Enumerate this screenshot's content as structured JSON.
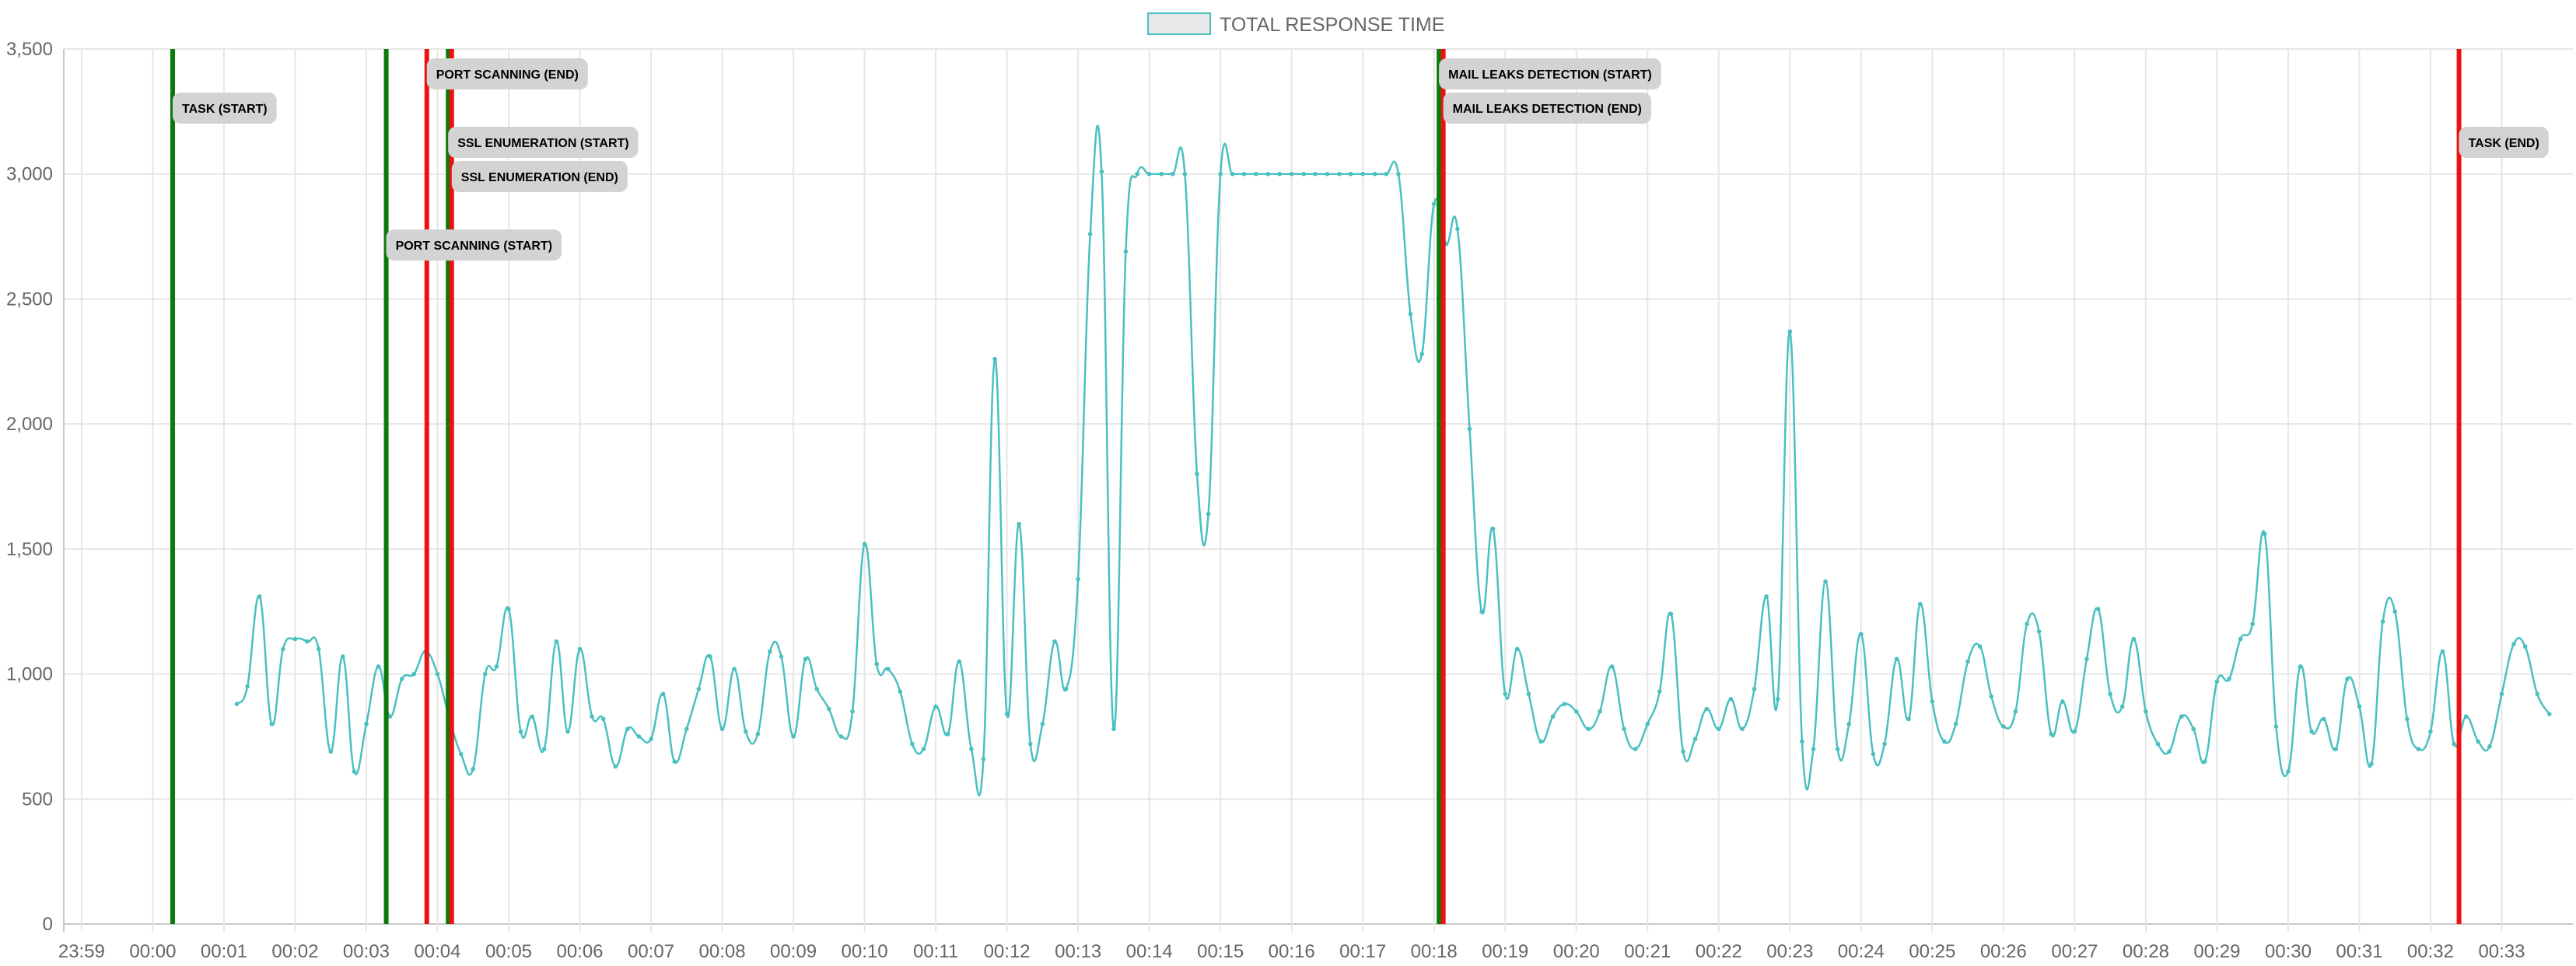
{
  "chart_data": {
    "type": "line",
    "legend": {
      "label": "TOTAL RESPONSE TIME",
      "placement": "top-center"
    },
    "colors": {
      "line": "#4bc0c0",
      "start": "#0b7a0b",
      "end": "#ee1111",
      "grid": "#e6e6e6",
      "annotation_bg": "#d3d3d3",
      "legend_box": "#e8e8e8"
    },
    "ylim": [
      0,
      3500
    ],
    "y_ticks": [
      {
        "value": 0,
        "label": "0"
      },
      {
        "value": 500,
        "label": "500"
      },
      {
        "value": 1000,
        "label": "1,000"
      },
      {
        "value": 1500,
        "label": "1,500"
      },
      {
        "value": 2000,
        "label": "2,000"
      },
      {
        "value": 2500,
        "label": "2,500"
      },
      {
        "value": 3000,
        "label": "3,000"
      },
      {
        "value": 3500,
        "label": "3,500"
      }
    ],
    "xlim": [
      -1.25,
      34.0
    ],
    "x_ticks": [
      {
        "value": -1,
        "label": "23:59"
      },
      {
        "value": 0,
        "label": "00:00"
      },
      {
        "value": 1,
        "label": "00:01"
      },
      {
        "value": 2,
        "label": "00:02"
      },
      {
        "value": 3,
        "label": "00:03"
      },
      {
        "value": 4,
        "label": "00:04"
      },
      {
        "value": 5,
        "label": "00:05"
      },
      {
        "value": 6,
        "label": "00:06"
      },
      {
        "value": 7,
        "label": "00:07"
      },
      {
        "value": 8,
        "label": "00:08"
      },
      {
        "value": 9,
        "label": "00:09"
      },
      {
        "value": 10,
        "label": "00:10"
      },
      {
        "value": 11,
        "label": "00:11"
      },
      {
        "value": 12,
        "label": "00:12"
      },
      {
        "value": 13,
        "label": "00:13"
      },
      {
        "value": 14,
        "label": "00:14"
      },
      {
        "value": 15,
        "label": "00:15"
      },
      {
        "value": 16,
        "label": "00:16"
      },
      {
        "value": 17,
        "label": "00:17"
      },
      {
        "value": 18,
        "label": "00:18"
      },
      {
        "value": 19,
        "label": "00:19"
      },
      {
        "value": 20,
        "label": "00:20"
      },
      {
        "value": 21,
        "label": "00:21"
      },
      {
        "value": 22,
        "label": "00:22"
      },
      {
        "value": 23,
        "label": "00:23"
      },
      {
        "value": 24,
        "label": "00:24"
      },
      {
        "value": 25,
        "label": "00:25"
      },
      {
        "value": 26,
        "label": "00:26"
      },
      {
        "value": 27,
        "label": "00:27"
      },
      {
        "value": 28,
        "label": "00:28"
      },
      {
        "value": 29,
        "label": "00:29"
      },
      {
        "value": 30,
        "label": "00:30"
      },
      {
        "value": 31,
        "label": "00:31"
      },
      {
        "value": 32,
        "label": "00:32"
      },
      {
        "value": 33,
        "label": "00:33"
      }
    ],
    "grid": true,
    "series": [
      {
        "name": "TOTAL RESPONSE TIME",
        "points": [
          [
            1.18,
            880
          ],
          [
            1.33,
            950
          ],
          [
            1.5,
            1310
          ],
          [
            1.67,
            800
          ],
          [
            1.83,
            1100
          ],
          [
            2.0,
            1140
          ],
          [
            2.17,
            1130
          ],
          [
            2.33,
            1100
          ],
          [
            2.5,
            690
          ],
          [
            2.67,
            1070
          ],
          [
            2.83,
            610
          ],
          [
            3.0,
            800
          ],
          [
            3.17,
            1030
          ],
          [
            3.33,
            830
          ],
          [
            3.5,
            980
          ],
          [
            3.67,
            1000
          ],
          [
            3.83,
            1090
          ],
          [
            4.0,
            1000
          ],
          [
            4.17,
            820
          ],
          [
            4.33,
            680
          ],
          [
            4.5,
            620
          ],
          [
            4.67,
            1000
          ],
          [
            4.83,
            1030
          ],
          [
            5.0,
            1260
          ],
          [
            5.17,
            770
          ],
          [
            5.33,
            830
          ],
          [
            5.5,
            700
          ],
          [
            5.67,
            1130
          ],
          [
            5.83,
            770
          ],
          [
            6.0,
            1100
          ],
          [
            6.17,
            830
          ],
          [
            6.33,
            820
          ],
          [
            6.5,
            630
          ],
          [
            6.67,
            780
          ],
          [
            6.83,
            750
          ],
          [
            7.0,
            740
          ],
          [
            7.17,
            920
          ],
          [
            7.33,
            650
          ],
          [
            7.5,
            780
          ],
          [
            7.67,
            940
          ],
          [
            7.83,
            1070
          ],
          [
            8.0,
            780
          ],
          [
            8.17,
            1020
          ],
          [
            8.33,
            770
          ],
          [
            8.5,
            760
          ],
          [
            8.67,
            1090
          ],
          [
            8.83,
            1070
          ],
          [
            9.0,
            750
          ],
          [
            9.17,
            1060
          ],
          [
            9.33,
            940
          ],
          [
            9.5,
            860
          ],
          [
            9.67,
            750
          ],
          [
            9.83,
            850
          ],
          [
            10.0,
            1520
          ],
          [
            10.17,
            1040
          ],
          [
            10.33,
            1020
          ],
          [
            10.5,
            930
          ],
          [
            10.67,
            720
          ],
          [
            10.83,
            700
          ],
          [
            11.0,
            870
          ],
          [
            11.17,
            760
          ],
          [
            11.33,
            1050
          ],
          [
            11.5,
            700
          ],
          [
            11.67,
            660
          ],
          [
            11.83,
            2260
          ],
          [
            12.0,
            840
          ],
          [
            12.17,
            1600
          ],
          [
            12.33,
            720
          ],
          [
            12.5,
            800
          ],
          [
            12.67,
            1130
          ],
          [
            12.83,
            940
          ],
          [
            13.0,
            1380
          ],
          [
            13.17,
            2760
          ],
          [
            13.33,
            3010
          ],
          [
            13.5,
            780
          ],
          [
            13.67,
            2690
          ],
          [
            13.83,
            3000
          ],
          [
            14.0,
            3000
          ],
          [
            14.17,
            3000
          ],
          [
            14.33,
            3000
          ],
          [
            14.5,
            3000
          ],
          [
            14.67,
            1800
          ],
          [
            14.83,
            1640
          ],
          [
            15.0,
            3000
          ],
          [
            15.17,
            3000
          ],
          [
            15.33,
            3000
          ],
          [
            15.5,
            3000
          ],
          [
            15.67,
            3000
          ],
          [
            15.83,
            3000
          ],
          [
            16.0,
            3000
          ],
          [
            16.17,
            3000
          ],
          [
            16.33,
            3000
          ],
          [
            16.5,
            3000
          ],
          [
            16.67,
            3000
          ],
          [
            16.83,
            3000
          ],
          [
            17.0,
            3000
          ],
          [
            17.17,
            3000
          ],
          [
            17.33,
            3000
          ],
          [
            17.5,
            3000
          ],
          [
            17.67,
            2440
          ],
          [
            17.83,
            2280
          ],
          [
            18.0,
            2880
          ],
          [
            18.17,
            2720
          ],
          [
            18.33,
            2780
          ],
          [
            18.5,
            1980
          ],
          [
            18.67,
            1250
          ],
          [
            18.83,
            1580
          ],
          [
            19.0,
            920
          ],
          [
            19.17,
            1100
          ],
          [
            19.33,
            920
          ],
          [
            19.5,
            730
          ],
          [
            19.67,
            830
          ],
          [
            19.83,
            880
          ],
          [
            20.0,
            850
          ],
          [
            20.17,
            780
          ],
          [
            20.33,
            850
          ],
          [
            20.5,
            1030
          ],
          [
            20.67,
            780
          ],
          [
            20.83,
            700
          ],
          [
            21.0,
            800
          ],
          [
            21.17,
            930
          ],
          [
            21.33,
            1240
          ],
          [
            21.5,
            690
          ],
          [
            21.67,
            740
          ],
          [
            21.83,
            860
          ],
          [
            22.0,
            780
          ],
          [
            22.17,
            900
          ],
          [
            22.33,
            780
          ],
          [
            22.5,
            940
          ],
          [
            22.67,
            1310
          ],
          [
            22.83,
            900
          ],
          [
            23.0,
            2370
          ],
          [
            23.17,
            730
          ],
          [
            23.33,
            700
          ],
          [
            23.5,
            1370
          ],
          [
            23.67,
            700
          ],
          [
            23.83,
            800
          ],
          [
            24.0,
            1160
          ],
          [
            24.17,
            680
          ],
          [
            24.33,
            720
          ],
          [
            24.5,
            1060
          ],
          [
            24.67,
            820
          ],
          [
            24.83,
            1280
          ],
          [
            25.0,
            890
          ],
          [
            25.17,
            730
          ],
          [
            25.33,
            800
          ],
          [
            25.5,
            1050
          ],
          [
            25.67,
            1110
          ],
          [
            25.83,
            910
          ],
          [
            26.0,
            790
          ],
          [
            26.17,
            850
          ],
          [
            26.33,
            1200
          ],
          [
            26.5,
            1170
          ],
          [
            26.67,
            760
          ],
          [
            26.83,
            890
          ],
          [
            27.0,
            770
          ],
          [
            27.17,
            1060
          ],
          [
            27.33,
            1260
          ],
          [
            27.5,
            920
          ],
          [
            27.67,
            870
          ],
          [
            27.83,
            1140
          ],
          [
            28.0,
            850
          ],
          [
            28.17,
            720
          ],
          [
            28.33,
            690
          ],
          [
            28.5,
            830
          ],
          [
            28.67,
            780
          ],
          [
            28.83,
            650
          ],
          [
            29.0,
            970
          ],
          [
            29.17,
            980
          ],
          [
            29.33,
            1140
          ],
          [
            29.5,
            1200
          ],
          [
            29.67,
            1560
          ],
          [
            29.83,
            790
          ],
          [
            30.0,
            610
          ],
          [
            30.17,
            1030
          ],
          [
            30.33,
            770
          ],
          [
            30.5,
            820
          ],
          [
            30.67,
            700
          ],
          [
            30.83,
            980
          ],
          [
            31.0,
            870
          ],
          [
            31.17,
            640
          ],
          [
            31.33,
            1210
          ],
          [
            31.5,
            1250
          ],
          [
            31.67,
            820
          ],
          [
            31.83,
            700
          ],
          [
            32.0,
            770
          ],
          [
            32.17,
            1090
          ],
          [
            32.33,
            720
          ],
          [
            32.5,
            830
          ],
          [
            32.67,
            730
          ],
          [
            32.83,
            710
          ],
          [
            33.0,
            920
          ],
          [
            33.17,
            1120
          ],
          [
            33.33,
            1110
          ],
          [
            33.5,
            920
          ],
          [
            33.67,
            840
          ]
        ]
      }
    ],
    "markers": [
      {
        "x": 0.28,
        "kind": "start",
        "label": "TASK (START)",
        "row": 2
      },
      {
        "x": 3.28,
        "kind": "start",
        "label": "PORT SCANNING (START)",
        "row": 6
      },
      {
        "x": 3.85,
        "kind": "end",
        "label": "PORT SCANNING (END)",
        "row": 1
      },
      {
        "x": 4.15,
        "kind": "start",
        "label": "SSL ENUMERATION (START)",
        "row": 3
      },
      {
        "x": 4.2,
        "kind": "end",
        "label": "SSL ENUMERATION (END)",
        "row": 4
      },
      {
        "x": 18.07,
        "kind": "start",
        "label": "MAIL LEAKS DETECTION (START)",
        "row": 1
      },
      {
        "x": 18.13,
        "kind": "end",
        "label": "MAIL LEAKS DETECTION (END)",
        "row": 2
      },
      {
        "x": 32.4,
        "kind": "end",
        "label": "TASK (END)",
        "row": 3
      }
    ]
  }
}
